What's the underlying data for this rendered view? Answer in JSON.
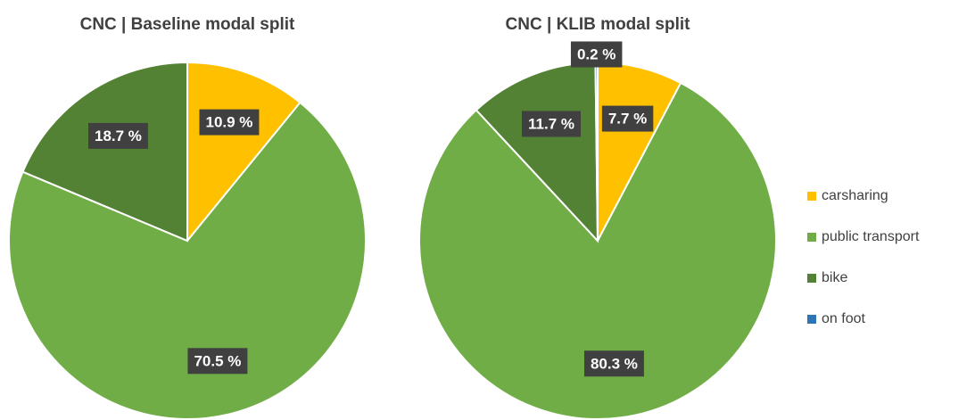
{
  "chart_data": [
    {
      "type": "pie",
      "title": "CNC | Baseline modal split",
      "categories": [
        "carsharing",
        "public transport",
        "bike",
        "on foot"
      ],
      "values": [
        10.9,
        70.5,
        18.7,
        0
      ],
      "value_labels": [
        "10.9 %",
        "70.5 %",
        "18.7 %",
        null
      ],
      "colors": [
        "#ffc000",
        "#70ad47",
        "#548235",
        "#2e75b6"
      ]
    },
    {
      "type": "pie",
      "title": "CNC | KLIB modal split",
      "categories": [
        "carsharing",
        "public transport",
        "bike",
        "on foot"
      ],
      "values": [
        7.7,
        80.3,
        11.7,
        0.2
      ],
      "value_labels": [
        "7.7 %",
        "80.3 %",
        "11.7 %",
        "0.2 %"
      ],
      "colors": [
        "#ffc000",
        "#70ad47",
        "#548235",
        "#2e75b6"
      ],
      "legend": "right"
    }
  ]
}
